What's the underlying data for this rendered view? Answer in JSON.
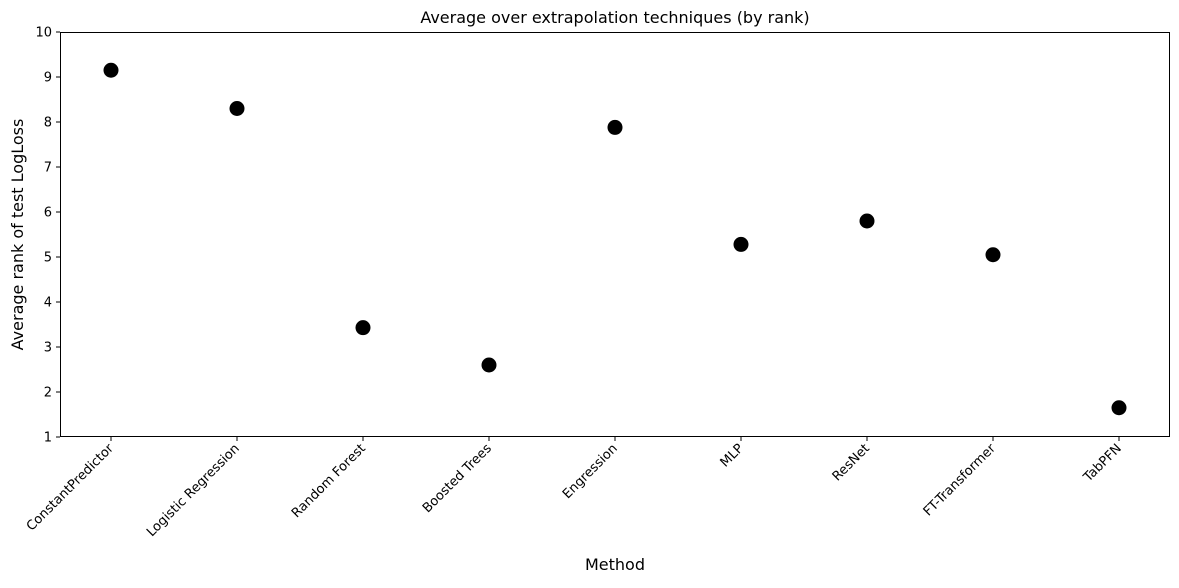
{
  "chart_data": {
    "type": "scatter",
    "title": "Average over extrapolation techniques (by rank)",
    "xlabel": "Method",
    "ylabel": "Average rank of test LogLoss",
    "categories": [
      "ConstantPredictor",
      "Logistic Regression",
      "Random Forest",
      "Boosted Trees",
      "Engression",
      "MLP",
      "ResNet",
      "FT-Transformer",
      "TabPFN"
    ],
    "values": [
      9.15,
      8.3,
      3.43,
      2.6,
      7.88,
      5.28,
      5.8,
      5.05,
      1.65
    ],
    "ylim": [
      1,
      10
    ],
    "yticks": [
      1,
      2,
      3,
      4,
      5,
      6,
      7,
      8,
      9,
      10
    ],
    "grid": false,
    "legend": "none",
    "marker_color": "#000000"
  }
}
